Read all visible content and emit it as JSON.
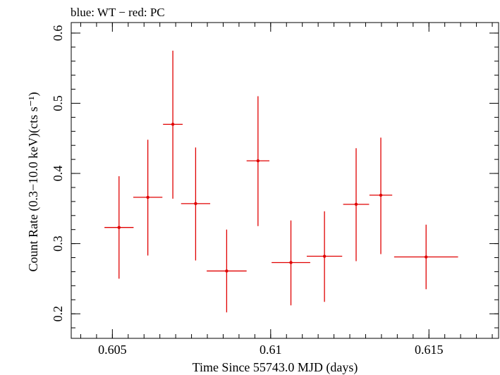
{
  "chart_data": {
    "type": "scatter",
    "title": "blue: WT − red: PC",
    "xlabel": "Time Since 55743.0 MJD (days)",
    "ylabel": "Count Rate (0.3−10.0 keV)(cts s⁻¹)",
    "xlim": [
      0.6037,
      0.6172
    ],
    "ylim": [
      0.165,
      0.615
    ],
    "xticks": [
      0.605,
      0.61,
      0.615
    ],
    "xtick_labels": [
      "0.605",
      "0.61",
      "0.615"
    ],
    "yticks": [
      0.2,
      0.3,
      0.4,
      0.5,
      0.6
    ],
    "ytick_labels": [
      "0.2",
      "0.3",
      "0.4",
      "0.5",
      "0.6"
    ],
    "x_minor_step": 0.0005,
    "y_minor_step": 0.02,
    "grid": false,
    "series": [
      {
        "color": "#e00000",
        "points": [
          {
            "x": 0.60521,
            "xerr": 0.00046,
            "y": 0.323,
            "ylo": 0.25,
            "yhi": 0.396
          },
          {
            "x": 0.60612,
            "xerr": 0.00046,
            "y": 0.366,
            "ylo": 0.283,
            "yhi": 0.448
          },
          {
            "x": 0.60691,
            "xerr": 0.00031,
            "y": 0.47,
            "ylo": 0.364,
            "yhi": 0.575
          },
          {
            "x": 0.60763,
            "xerr": 0.00046,
            "y": 0.357,
            "ylo": 0.276,
            "yhi": 0.437
          },
          {
            "x": 0.60861,
            "xerr": 0.00063,
            "y": 0.261,
            "ylo": 0.202,
            "yhi": 0.32
          },
          {
            "x": 0.6096,
            "xerr": 0.00036,
            "y": 0.418,
            "ylo": 0.325,
            "yhi": 0.51
          },
          {
            "x": 0.61064,
            "xerr": 0.00061,
            "y": 0.273,
            "ylo": 0.212,
            "yhi": 0.333
          },
          {
            "x": 0.6117,
            "xerr": 0.00056,
            "y": 0.282,
            "ylo": 0.217,
            "yhi": 0.346
          },
          {
            "x": 0.6127,
            "xerr": 0.00041,
            "y": 0.356,
            "ylo": 0.275,
            "yhi": 0.436
          },
          {
            "x": 0.61348,
            "xerr": 0.00036,
            "y": 0.369,
            "ylo": 0.285,
            "yhi": 0.451
          },
          {
            "x": 0.61491,
            "xerr": 0.00101,
            "y": 0.281,
            "ylo": 0.235,
            "yhi": 0.327
          }
        ]
      }
    ]
  }
}
